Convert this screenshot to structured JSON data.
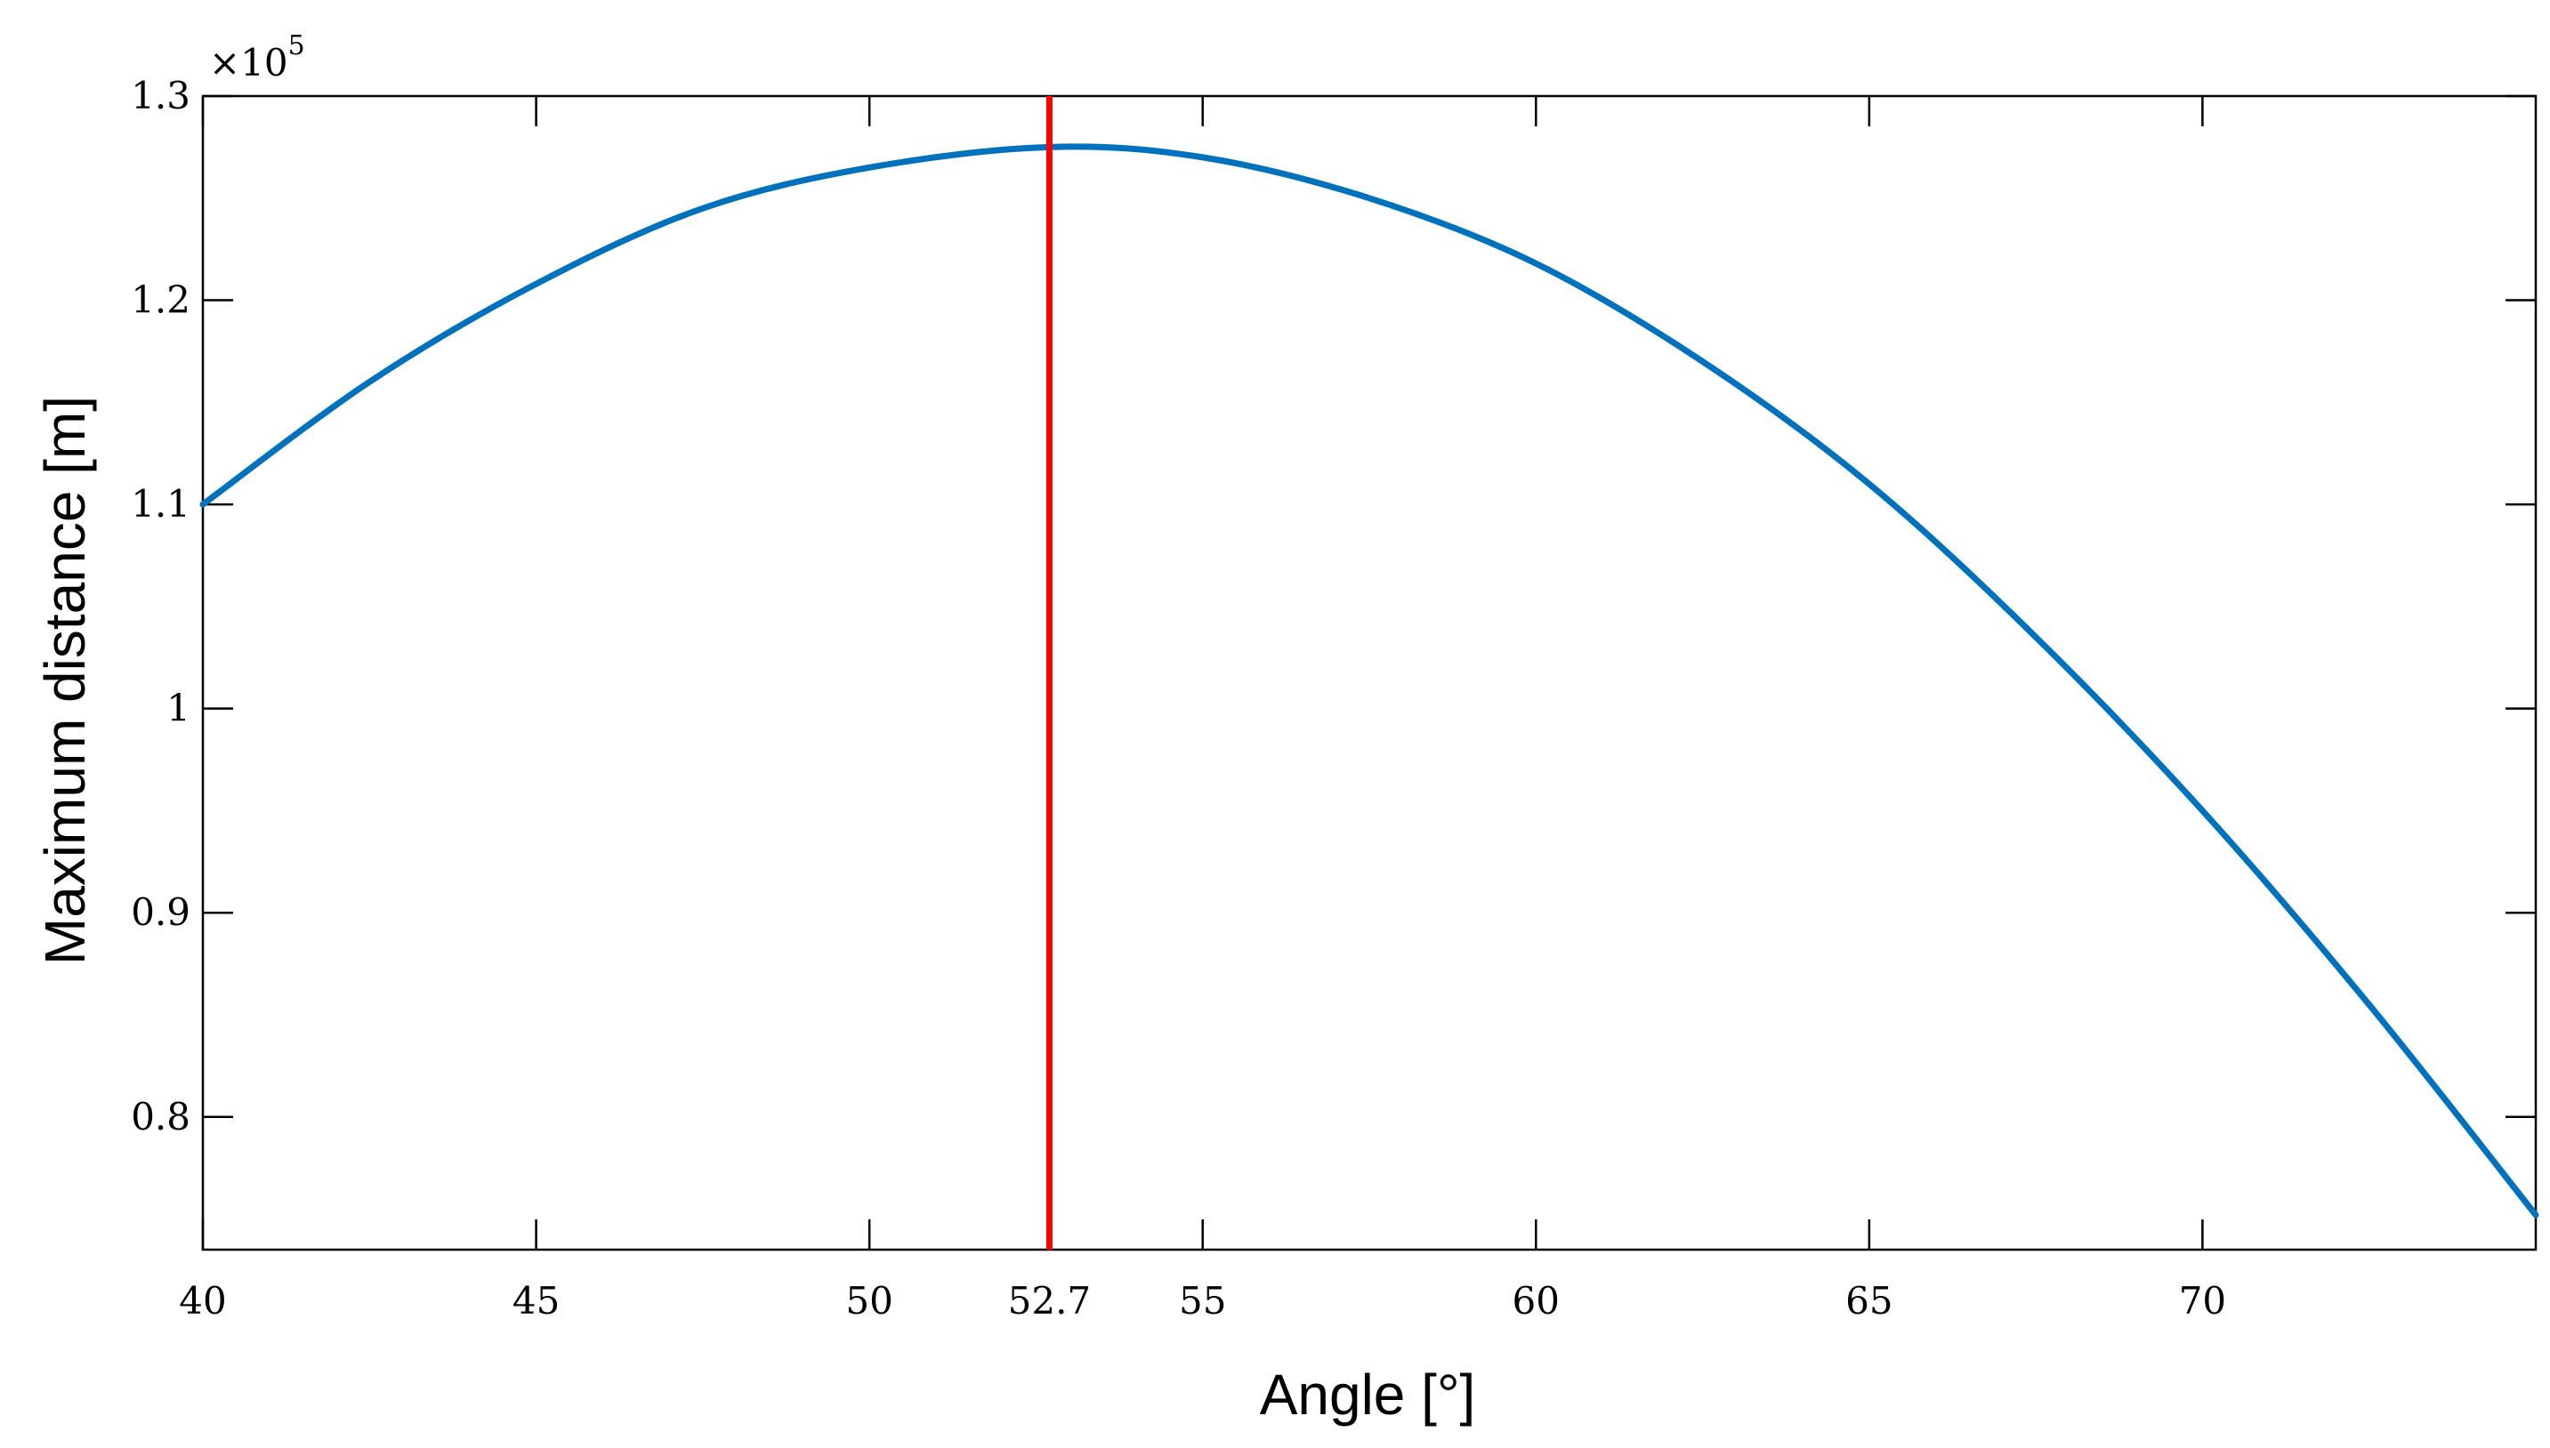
{
  "chart_data": {
    "type": "line",
    "xlabel": "Angle [°]",
    "ylabel": "Maximum distance [m]",
    "y_multiplier": "×10",
    "y_multiplier_exponent": "5",
    "xlim": [
      40,
      75
    ],
    "ylim": [
      0.735,
      1.3
    ],
    "xticks": [
      40,
      45,
      50,
      52.7,
      55,
      60,
      65,
      70
    ],
    "xtick_labels": [
      "40",
      "45",
      "50",
      "52.7",
      "55",
      "60",
      "65",
      "70"
    ],
    "yticks": [
      0.8,
      0.9,
      1,
      1.1,
      1.2,
      1.3
    ],
    "ytick_labels": [
      "0.8",
      "0.9",
      "1",
      "1.1",
      "1.2",
      "1.3"
    ],
    "grid": false,
    "series": [
      {
        "color": "#0072BD",
        "x": [
          40,
          42.5,
          45,
          47.5,
          50,
          52.7,
          55,
          57.5,
          60,
          62.5,
          65,
          67.5,
          70,
          72.5,
          75
        ],
        "y": [
          1.1,
          1.16,
          1.208,
          1.245,
          1.265,
          1.275,
          1.27,
          1.25,
          1.218,
          1.17,
          1.11,
          1.035,
          0.95,
          0.855,
          0.752
        ]
      }
    ],
    "annotations": [
      {
        "type": "vline",
        "x": 52.7,
        "color": "#FF0000"
      }
    ]
  }
}
